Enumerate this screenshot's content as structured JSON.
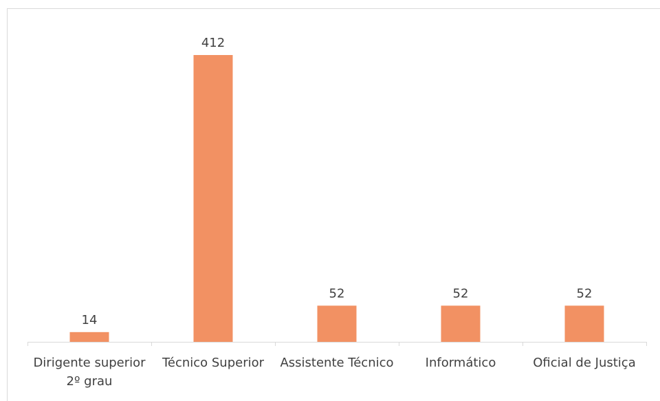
{
  "chart_data": {
    "type": "bar",
    "categories": [
      "Dirigente superior 2º grau",
      "Técnico Superior",
      "Assistente Técnico",
      "Informático",
      "Oficial de Justiça"
    ],
    "values": [
      14,
      412,
      52,
      52,
      52
    ],
    "color": "#f29163"
  }
}
